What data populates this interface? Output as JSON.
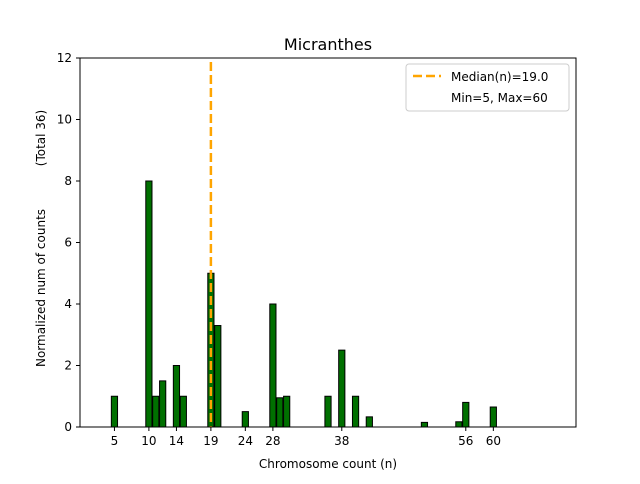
{
  "chart_data": {
    "type": "bar",
    "title": "Micranthes",
    "xlabel": "Chromosome count (n)",
    "ylabel": "Normalized num of counts",
    "ylabel_note": "(Total 36)",
    "xlim": [
      0,
      72
    ],
    "ylim": [
      0,
      12
    ],
    "xticks": [
      5,
      10,
      14,
      19,
      24,
      28,
      38,
      56,
      60
    ],
    "yticks": [
      0,
      2,
      4,
      6,
      8,
      10,
      12
    ],
    "grid": false,
    "bar_color": "#007000",
    "bars": [
      {
        "x": 5,
        "y": 1.0
      },
      {
        "x": 10,
        "y": 8.0
      },
      {
        "x": 11,
        "y": 1.0
      },
      {
        "x": 12,
        "y": 1.5
      },
      {
        "x": 14,
        "y": 2.0
      },
      {
        "x": 15,
        "y": 1.0
      },
      {
        "x": 19,
        "y": 5.0
      },
      {
        "x": 20,
        "y": 3.3
      },
      {
        "x": 24,
        "y": 0.5
      },
      {
        "x": 28,
        "y": 4.0
      },
      {
        "x": 29,
        "y": 0.95
      },
      {
        "x": 30,
        "y": 1.0
      },
      {
        "x": 36,
        "y": 1.0
      },
      {
        "x": 38,
        "y": 2.5
      },
      {
        "x": 40,
        "y": 1.0
      },
      {
        "x": 42,
        "y": 0.33
      },
      {
        "x": 50,
        "y": 0.15
      },
      {
        "x": 55,
        "y": 0.17
      },
      {
        "x": 56,
        "y": 0.8
      },
      {
        "x": 60,
        "y": 0.65
      }
    ],
    "median": {
      "value": 19.0,
      "color": "#FFA500"
    },
    "legend": {
      "placement": "top-right",
      "entries": [
        "Median(n)=19.0",
        "Min=5, Max=60"
      ]
    }
  }
}
